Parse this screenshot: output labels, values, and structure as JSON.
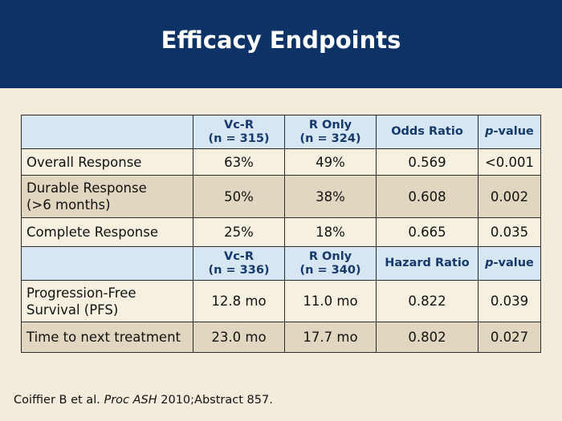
{
  "title": "Efficacy Endpoints",
  "table1": {
    "header": {
      "col1_line1": "Vc-R",
      "col1_line2": "(n = 315)",
      "col2_line1": "R Only",
      "col2_line2": "(n = 324)",
      "col3": "Odds Ratio",
      "col4_italic": "p",
      "col4_rest": "-value"
    },
    "rows": [
      {
        "label": "Overall Response",
        "vcr": "63%",
        "r": "49%",
        "ratio": "0.569",
        "p": "<0.001"
      },
      {
        "label_line1": "Durable Response",
        "label_line2": "(>6 months)",
        "vcr": "50%",
        "r": "38%",
        "ratio": "0.608",
        "p": "0.002"
      },
      {
        "label": "Complete Response",
        "vcr": "25%",
        "r": "18%",
        "ratio": "0.665",
        "p": "0.035"
      }
    ]
  },
  "table2": {
    "header": {
      "col1_line1": "Vc-R",
      "col1_line2": "(n = 336)",
      "col2_line1": "R Only",
      "col2_line2": "(n = 340)",
      "col3": "Hazard Ratio",
      "col4_italic": "p",
      "col4_rest": "-value"
    },
    "rows": [
      {
        "label_line1": "Progression-Free",
        "label_line2": "Survival (PFS)",
        "vcr": "12.8 mo",
        "r": "11.0 mo",
        "ratio": "0.822",
        "p": "0.039"
      },
      {
        "label": "Time to next treatment",
        "vcr": "23.0 mo",
        "r": "17.7 mo",
        "ratio": "0.802",
        "p": "0.027"
      }
    ]
  },
  "citation": {
    "prefix": "Coiffier B et al. ",
    "journal": "Proc ASH",
    "suffix": " 2010;Abstract 857."
  }
}
